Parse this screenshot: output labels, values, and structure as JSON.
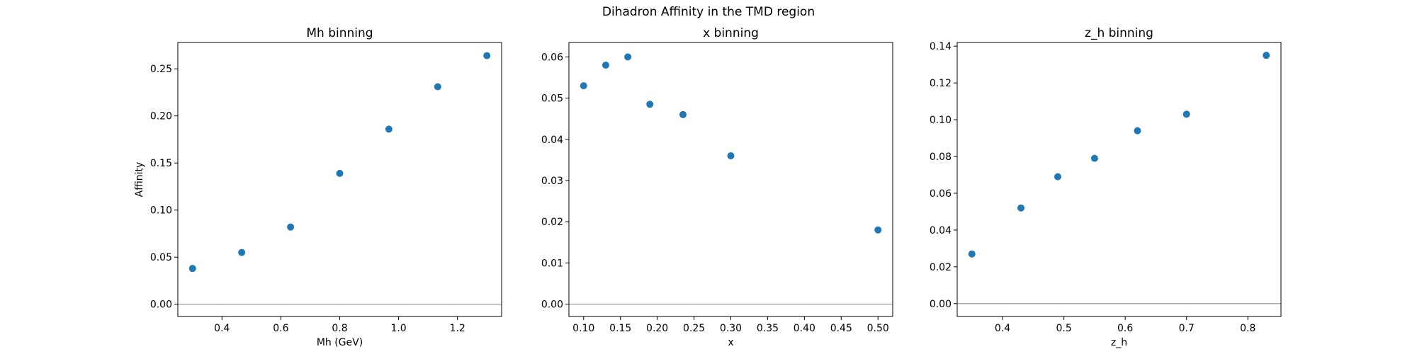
{
  "title": "Dihadron Affinity in the TMD region",
  "colors": {
    "points": "#1f77b4",
    "zero_line": "#808080"
  },
  "chart_data": [
    {
      "type": "scatter",
      "title": "Mh binning",
      "xlabel": "Mh (GeV)",
      "ylabel": "Affinity",
      "x": [
        0.3,
        0.467,
        0.633,
        0.8,
        0.967,
        1.133,
        1.3
      ],
      "y": [
        0.038,
        0.055,
        0.082,
        0.139,
        0.186,
        0.231,
        0.264
      ],
      "xlim": [
        0.25,
        1.35
      ],
      "ylim": [
        -0.013,
        0.278
      ],
      "xticks": [
        0.4,
        0.6,
        0.8,
        1.0,
        1.2
      ],
      "xtick_labels": [
        "0.4",
        "0.6",
        "0.8",
        "1.0",
        "1.2"
      ],
      "yticks": [
        0.0,
        0.05,
        0.1,
        0.15,
        0.2,
        0.25
      ],
      "ytick_labels": [
        "0.00",
        "0.05",
        "0.10",
        "0.15",
        "0.20",
        "0.25"
      ],
      "zero_line": true,
      "grid": false
    },
    {
      "type": "scatter",
      "title": "x binning",
      "xlabel": "x",
      "ylabel": "",
      "x": [
        0.1,
        0.13,
        0.16,
        0.19,
        0.235,
        0.3,
        0.5
      ],
      "y": [
        0.053,
        0.058,
        0.06,
        0.0485,
        0.046,
        0.036,
        0.018
      ],
      "xlim": [
        0.08,
        0.52
      ],
      "ylim": [
        -0.003,
        0.0635
      ],
      "xticks": [
        0.1,
        0.15,
        0.2,
        0.25,
        0.3,
        0.35,
        0.4,
        0.45,
        0.5
      ],
      "xtick_labels": [
        "0.10",
        "0.15",
        "0.20",
        "0.25",
        "0.30",
        "0.35",
        "0.40",
        "0.45",
        "0.50"
      ],
      "yticks": [
        0.0,
        0.01,
        0.02,
        0.03,
        0.04,
        0.05,
        0.06
      ],
      "ytick_labels": [
        "0.00",
        "0.01",
        "0.02",
        "0.03",
        "0.04",
        "0.05",
        "0.06"
      ],
      "zero_line": true,
      "grid": false
    },
    {
      "type": "scatter",
      "title": "z_h binning",
      "xlabel": "z_h",
      "ylabel": "",
      "x": [
        0.35,
        0.43,
        0.49,
        0.55,
        0.62,
        0.7,
        0.83
      ],
      "y": [
        0.027,
        0.052,
        0.069,
        0.079,
        0.094,
        0.103,
        0.135
      ],
      "xlim": [
        0.326,
        0.854
      ],
      "ylim": [
        -0.007,
        0.142
      ],
      "xticks": [
        0.4,
        0.5,
        0.6,
        0.7,
        0.8
      ],
      "xtick_labels": [
        "0.4",
        "0.5",
        "0.6",
        "0.7",
        "0.8"
      ],
      "yticks": [
        0.0,
        0.02,
        0.04,
        0.06,
        0.08,
        0.1,
        0.12,
        0.14
      ],
      "ytick_labels": [
        "0.00",
        "0.02",
        "0.04",
        "0.06",
        "0.08",
        "0.10",
        "0.12",
        "0.14"
      ],
      "zero_line": true,
      "grid": false
    }
  ]
}
